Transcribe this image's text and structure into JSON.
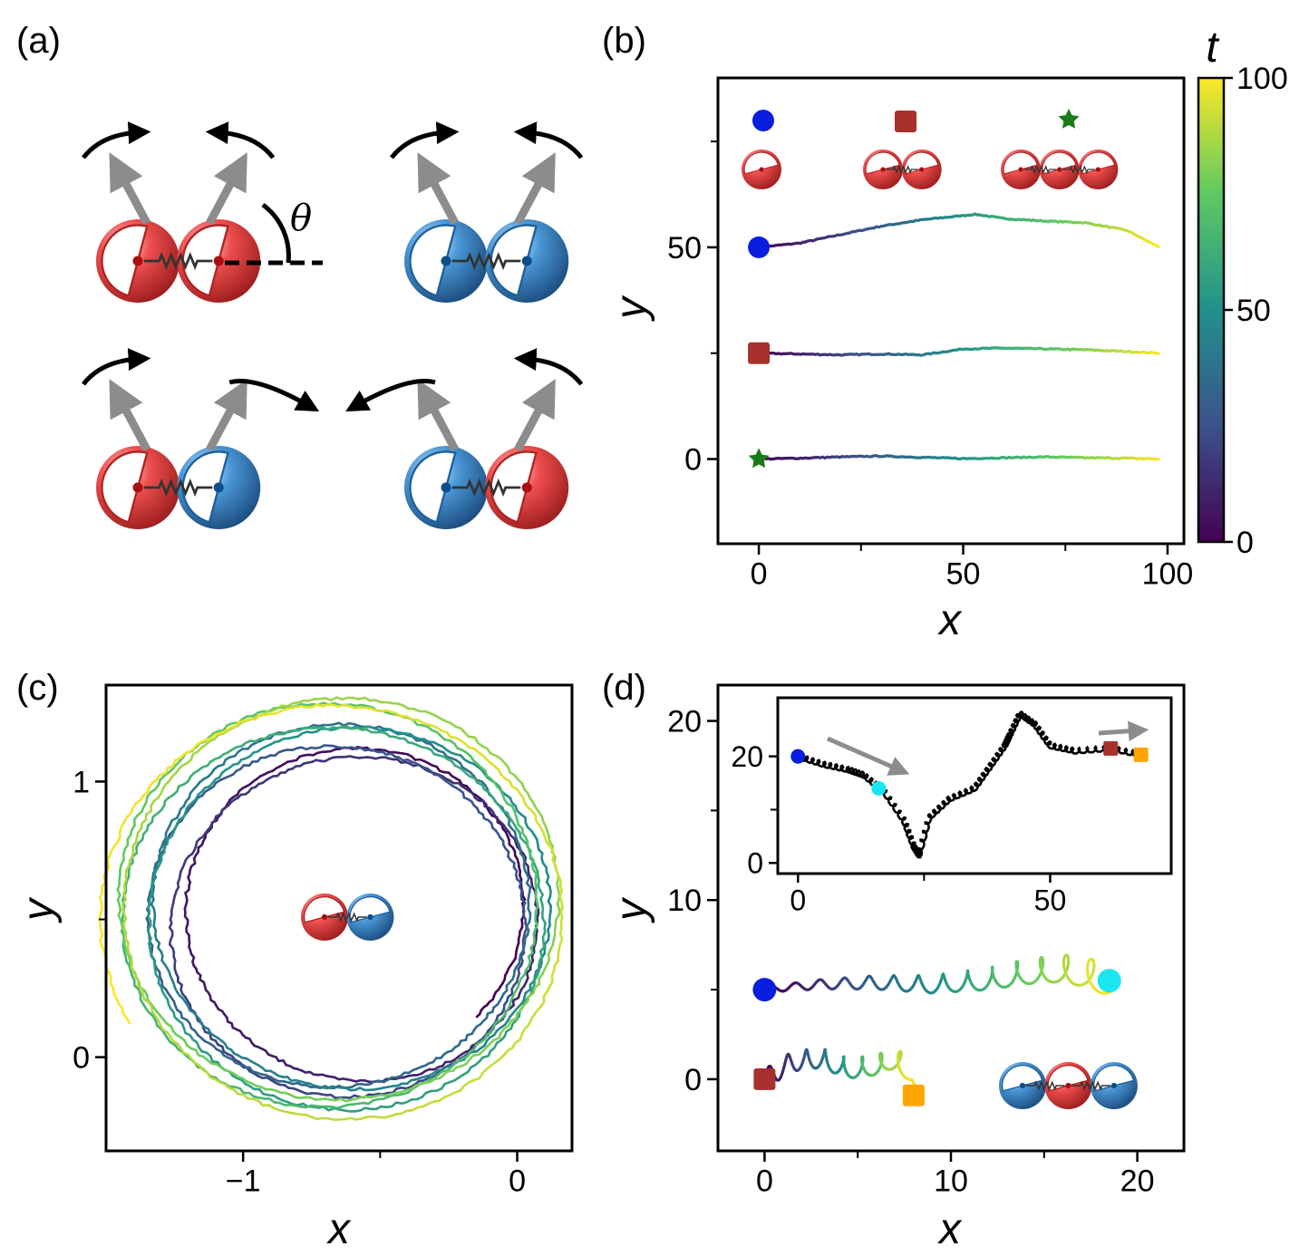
{
  "panels": {
    "a": "(a)",
    "b": "(b)",
    "c": "(c)",
    "d": "(d)"
  },
  "theta_label": "θ",
  "colors": {
    "red_particle": "#e84141",
    "blue_particle": "#3b8fd0",
    "arrow_gray": "#8c8c8c",
    "marker_blue": "#0a1ee0",
    "marker_red": "#a8302c",
    "marker_green": "#1a7a1a",
    "marker_cyan": "#19e6f0",
    "marker_orange": "#ffa500"
  },
  "chart_data": [
    {
      "id": "b",
      "type": "line",
      "xlabel": "x",
      "ylabel": "y",
      "xlim": [
        -10,
        104
      ],
      "ylim": [
        -20,
        90
      ],
      "xticks": [
        0,
        50,
        100
      ],
      "yticks": [
        0,
        50
      ],
      "colorbar": {
        "label": "t",
        "range": [
          0,
          100
        ],
        "ticks": [
          0,
          50,
          100
        ],
        "colormap": "viridis"
      },
      "series": [
        {
          "marker": "circle",
          "x": [
            0,
            10,
            20,
            30,
            40,
            50,
            53,
            60,
            70,
            80,
            90,
            98
          ],
          "y": [
            50,
            51,
            53,
            55,
            56.5,
            57.5,
            57.8,
            56.8,
            56.2,
            55.8,
            54,
            50
          ]
        },
        {
          "marker": "square",
          "x": [
            0,
            10,
            20,
            30,
            40,
            45,
            50,
            60,
            70,
            80,
            90,
            98
          ],
          "y": [
            25,
            24.8,
            24.6,
            24.8,
            24.6,
            25.3,
            26,
            26.2,
            26,
            25.8,
            25.4,
            25
          ]
        },
        {
          "marker": "star",
          "x": [
            0,
            10,
            20,
            30,
            40,
            50,
            60,
            70,
            80,
            90,
            98
          ],
          "y": [
            0,
            0.2,
            0.5,
            0.7,
            0.4,
            0.1,
            0.3,
            0.5,
            0.3,
            0.2,
            0
          ]
        }
      ]
    },
    {
      "id": "c",
      "type": "line",
      "xlabel": "x",
      "ylabel": "y",
      "xlim": [
        -1.5,
        0.2
      ],
      "ylim": [
        -0.34,
        1.35
      ],
      "xticks": [
        -1,
        0
      ],
      "xticklabels": [
        "−1",
        "0"
      ],
      "yticks": [
        0,
        1
      ],
      "spiral": {
        "center_x": -0.6,
        "center_y": 0.5,
        "radius_start": 0.62,
        "radius_end": 0.83,
        "turns": 8.7,
        "start_angle_deg": -40,
        "t_range": [
          0,
          100
        ]
      }
    },
    {
      "id": "d",
      "type": "line",
      "xlabel": "x",
      "ylabel": "y",
      "xlim": [
        -2.5,
        22.5
      ],
      "ylim": [
        -4,
        22
      ],
      "xticks": [
        0,
        10,
        20
      ],
      "yticks": [
        0,
        10,
        20
      ],
      "series": [
        {
          "start": [
            0,
            5
          ],
          "end": [
            18.5,
            5.5
          ],
          "start_marker": "circle",
          "end_marker": "circle-cyan",
          "backbone_x": [
            0,
            3,
            6,
            9,
            12,
            14,
            16,
            17.5,
            18.5
          ],
          "backbone_y": [
            5,
            5.3,
            5.4,
            5.3,
            5.6,
            6.0,
            6.2,
            5.9,
            5.5
          ]
        },
        {
          "start": [
            0,
            0
          ],
          "end": [
            8,
            -0.9
          ],
          "start_marker": "square",
          "end_marker": "square-orange",
          "backbone_x": [
            0,
            1.5,
            3,
            4.5,
            6,
            7,
            7.8,
            8
          ],
          "backbone_y": [
            0,
            1.0,
            1.2,
            0.6,
            0.8,
            1.2,
            0.5,
            -0.9
          ]
        }
      ],
      "inset": {
        "xlim": [
          -4,
          74
        ],
        "ylim": [
          -2,
          31
        ],
        "xticks": [
          0,
          50
        ],
        "yticks": [
          0,
          20
        ],
        "path_x": [
          0,
          5,
          10,
          13,
          17,
          21,
          23,
          24,
          26,
          30,
          35,
          38,
          41,
          42,
          44,
          47,
          50,
          55,
          62,
          68
        ],
        "path_y": [
          20,
          18.5,
          17.5,
          16.5,
          13.5,
          8,
          3,
          1.5,
          8.5,
          12,
          14,
          18,
          22,
          24,
          28,
          26,
          22,
          21,
          21.5,
          20.3
        ],
        "markers": [
          {
            "x": 0,
            "y": 20,
            "color": "blue"
          },
          {
            "x": 16,
            "y": 14,
            "color": "cyan"
          },
          {
            "x": 62,
            "y": 21.5,
            "color": "red"
          },
          {
            "x": 68,
            "y": 20.3,
            "color": "orange"
          }
        ]
      }
    }
  ]
}
